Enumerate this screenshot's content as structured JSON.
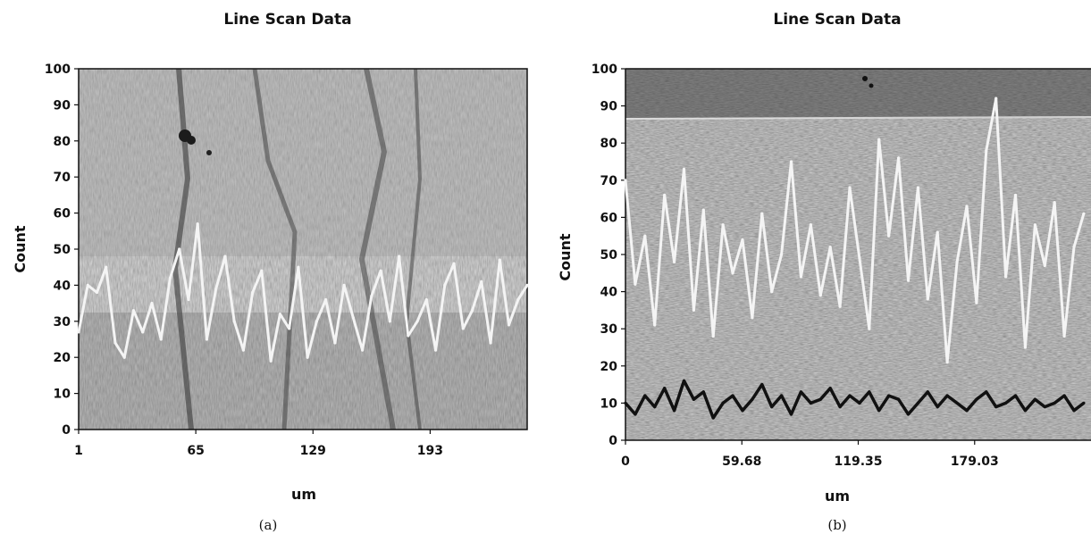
{
  "chart_data": [
    {
      "type": "line",
      "panel_label": "(a)",
      "title": "Line Scan Data",
      "xlabel": "um",
      "ylabel": "Count",
      "xlim": [
        1,
        246
      ],
      "ylim": [
        0,
        100
      ],
      "x_ticks": [
        "1",
        "65",
        "129",
        "193"
      ],
      "x_tick_values": [
        1,
        65,
        129,
        193
      ],
      "y_ticks": [
        0,
        10,
        20,
        30,
        40,
        50,
        60,
        70,
        80,
        90,
        100
      ],
      "background": "grayscale SEM micrograph",
      "grid": false,
      "series": [
        {
          "color": "#f4f4f4",
          "x": [
            1,
            6,
            11,
            16,
            21,
            26,
            31,
            36,
            41,
            46,
            51,
            56,
            61,
            66,
            71,
            76,
            81,
            86,
            91,
            96,
            101,
            106,
            111,
            116,
            121,
            126,
            131,
            136,
            141,
            146,
            151,
            156,
            161,
            166,
            171,
            176,
            181,
            186,
            191,
            196,
            201,
            206,
            211,
            216,
            221,
            226,
            231,
            236,
            241,
            246
          ],
          "values": [
            27,
            40,
            38,
            45,
            24,
            20,
            33,
            27,
            35,
            25,
            42,
            50,
            36,
            57,
            25,
            39,
            48,
            30,
            22,
            38,
            44,
            19,
            32,
            28,
            45,
            20,
            30,
            36,
            24,
            40,
            31,
            22,
            37,
            44,
            30,
            48,
            26,
            30,
            36,
            22,
            40,
            46,
            28,
            33,
            41,
            24,
            47,
            29,
            36,
            40
          ]
        }
      ]
    },
    {
      "type": "line",
      "panel_label": "(b)",
      "title": "Line Scan Data",
      "xlabel": "um",
      "ylabel": "Count",
      "xlim": [
        0,
        238.7
      ],
      "ylim": [
        0,
        100
      ],
      "x_ticks": [
        "0",
        "59.68",
        "119.35",
        "179.03"
      ],
      "x_tick_values": [
        0,
        59.68,
        119.35,
        179.03
      ],
      "y_ticks": [
        0,
        10,
        20,
        30,
        40,
        50,
        60,
        70,
        80,
        90,
        100
      ],
      "background": "grayscale SEM micrograph",
      "grid": false,
      "series": [
        {
          "color": "#f4f4f4",
          "x": [
            0,
            5,
            10,
            15,
            20,
            25,
            30,
            35,
            40,
            45,
            50,
            55,
            60,
            65,
            70,
            75,
            80,
            85,
            90,
            95,
            100,
            105,
            110,
            115,
            120,
            125,
            130,
            135,
            140,
            145,
            150,
            155,
            160,
            165,
            170,
            175,
            180,
            185,
            190,
            195,
            200,
            205,
            210,
            215,
            220,
            225,
            230,
            235
          ],
          "values": [
            70,
            42,
            55,
            31,
            66,
            48,
            73,
            35,
            62,
            28,
            58,
            45,
            54,
            33,
            61,
            40,
            50,
            75,
            44,
            58,
            39,
            52,
            36,
            68,
            49,
            30,
            81,
            55,
            76,
            43,
            68,
            38,
            56,
            21,
            48,
            63,
            37,
            78,
            92,
            44,
            66,
            25,
            58,
            47,
            64,
            28,
            52,
            61
          ]
        },
        {
          "color": "#111111",
          "x": [
            0,
            5,
            10,
            15,
            20,
            25,
            30,
            35,
            40,
            45,
            50,
            55,
            60,
            65,
            70,
            75,
            80,
            85,
            90,
            95,
            100,
            105,
            110,
            115,
            120,
            125,
            130,
            135,
            140,
            145,
            150,
            155,
            160,
            165,
            170,
            175,
            180,
            185,
            190,
            195,
            200,
            205,
            210,
            215,
            220,
            225,
            230,
            235
          ],
          "values": [
            10,
            7,
            12,
            9,
            14,
            8,
            16,
            11,
            13,
            6,
            10,
            12,
            8,
            11,
            15,
            9,
            12,
            7,
            13,
            10,
            11,
            14,
            9,
            12,
            10,
            13,
            8,
            12,
            11,
            7,
            10,
            13,
            9,
            12,
            10,
            8,
            11,
            13,
            9,
            10,
            12,
            8,
            11,
            9,
            10,
            12,
            8,
            10
          ]
        }
      ]
    }
  ]
}
